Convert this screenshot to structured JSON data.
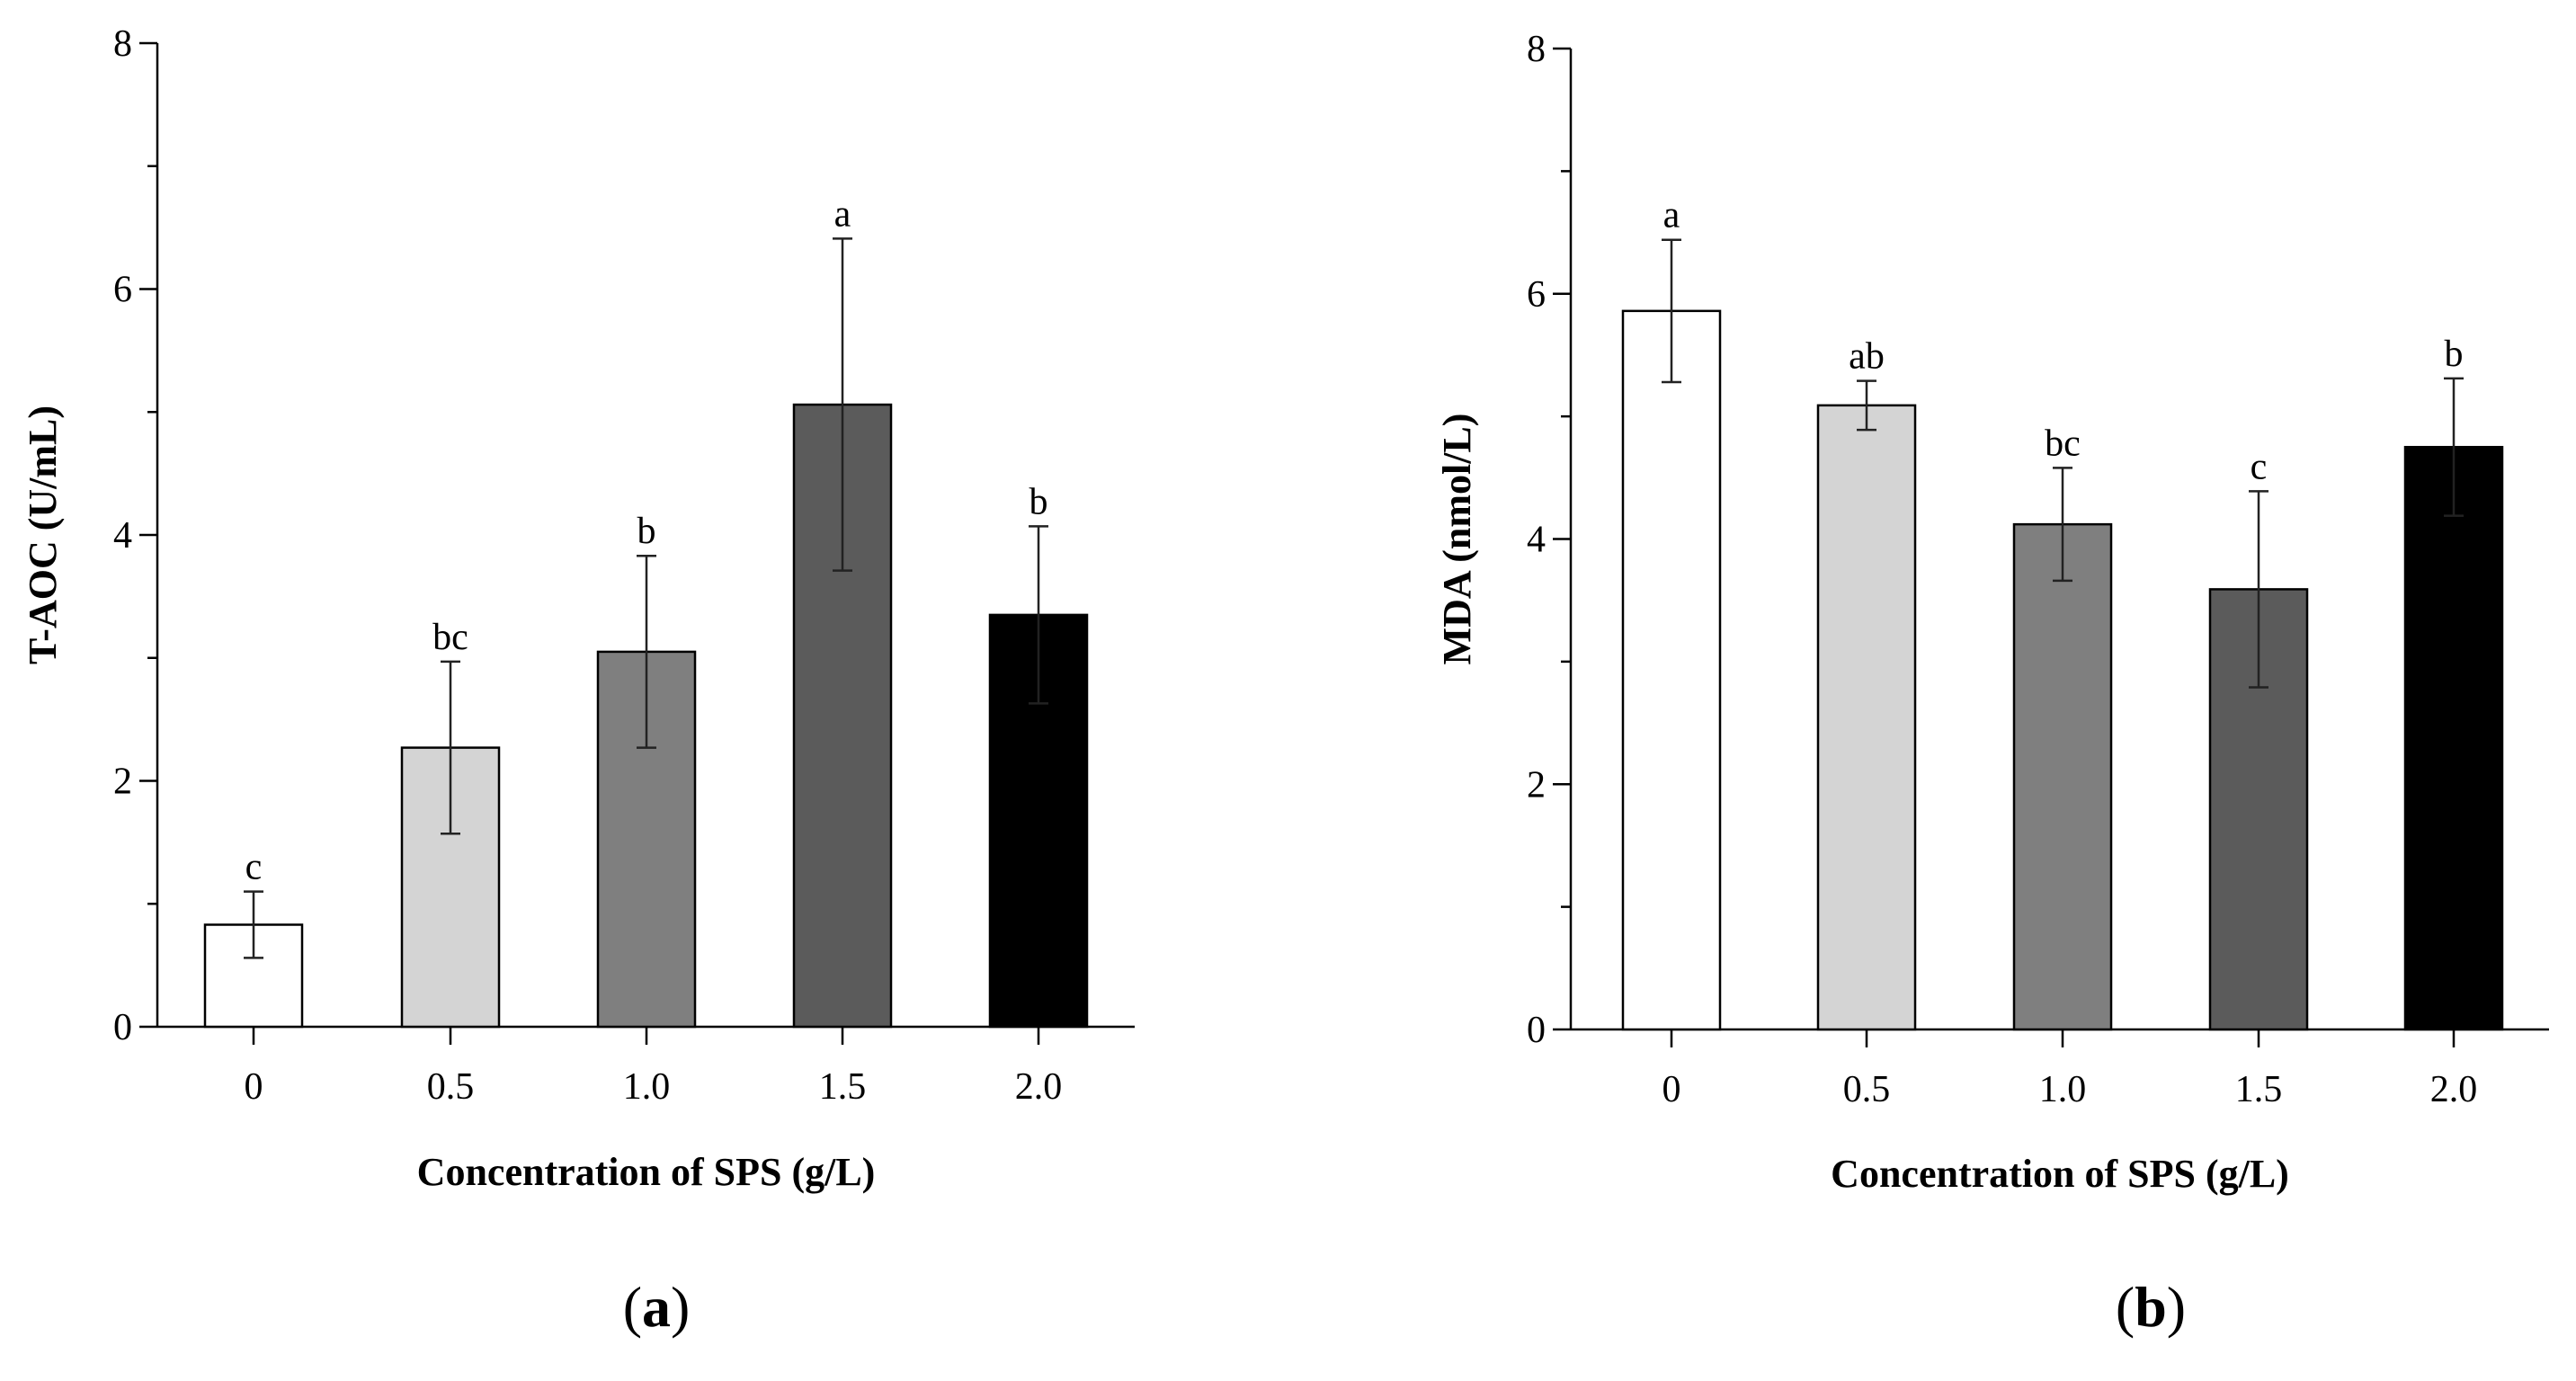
{
  "chart_data": [
    {
      "type": "bar",
      "panel": "(a)",
      "panel_letter": "a",
      "title": "",
      "categories": [
        "0",
        "0.5",
        "1.0",
        "1.5",
        "2.0"
      ],
      "values": [
        0.83,
        2.27,
        3.05,
        5.06,
        3.35
      ],
      "errors": [
        0.27,
        0.7,
        0.78,
        1.35,
        0.72
      ],
      "significance": [
        "c",
        "bc",
        "b",
        "a",
        "b"
      ],
      "bar_colors": [
        "#ffffff",
        "#d4d4d4",
        "#7f7f7f",
        "#5b5b5b",
        "#000000"
      ],
      "xlabel": "Concentration of SPS (g/L)",
      "ylabel": "T-AOC (U/mL)",
      "ylim": [
        0,
        8
      ],
      "yticks": [
        "0",
        "2",
        "4",
        "6",
        "8"
      ]
    },
    {
      "type": "bar",
      "panel": "(b)",
      "panel_letter": "b",
      "title": "",
      "categories": [
        "0",
        "0.5",
        "1.0",
        "1.5",
        "2.0"
      ],
      "values": [
        5.86,
        5.09,
        4.12,
        3.59,
        4.75
      ],
      "errors": [
        0.58,
        0.2,
        0.46,
        0.8,
        0.56
      ],
      "significance": [
        "a",
        "ab",
        "bc",
        "c",
        "b"
      ],
      "bar_colors": [
        "#ffffff",
        "#d4d4d4",
        "#7f7f7f",
        "#5b5b5b",
        "#000000"
      ],
      "xlabel": "Concentration of SPS (g/L)",
      "ylabel": "MDA (nmol/L)",
      "ylim": [
        0,
        8
      ],
      "yticks": [
        "0",
        "2",
        "4",
        "6",
        "8"
      ]
    }
  ]
}
